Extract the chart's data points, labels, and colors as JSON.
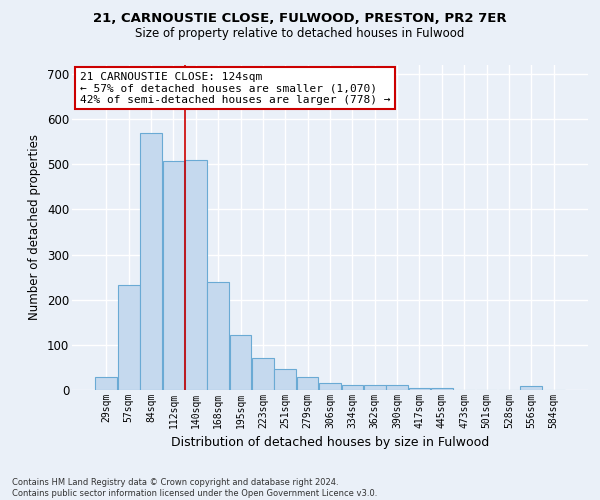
{
  "title_line1": "21, CARNOUSTIE CLOSE, FULWOOD, PRESTON, PR2 7ER",
  "title_line2": "Size of property relative to detached houses in Fulwood",
  "xlabel": "Distribution of detached houses by size in Fulwood",
  "ylabel": "Number of detached properties",
  "categories": [
    "29sqm",
    "57sqm",
    "84sqm",
    "112sqm",
    "140sqm",
    "168sqm",
    "195sqm",
    "223sqm",
    "251sqm",
    "279sqm",
    "306sqm",
    "334sqm",
    "362sqm",
    "390sqm",
    "417sqm",
    "445sqm",
    "473sqm",
    "501sqm",
    "528sqm",
    "556sqm",
    "584sqm"
  ],
  "values": [
    28,
    232,
    570,
    508,
    510,
    240,
    122,
    72,
    46,
    28,
    15,
    10,
    10,
    10,
    5,
    5,
    0,
    0,
    0,
    8,
    0
  ],
  "bar_color": "#c5d9ee",
  "bar_edge_color": "#6aaad4",
  "vline_x": 3.5,
  "vline_color": "#cc0000",
  "annotation_text": "21 CARNOUSTIE CLOSE: 124sqm\n← 57% of detached houses are smaller (1,070)\n42% of semi-detached houses are larger (778) →",
  "ylim": [
    0,
    720
  ],
  "yticks": [
    0,
    100,
    200,
    300,
    400,
    500,
    600,
    700
  ],
  "bg_color": "#eaf0f8",
  "grid_color": "#ffffff",
  "footnote": "Contains HM Land Registry data © Crown copyright and database right 2024.\nContains public sector information licensed under the Open Government Licence v3.0."
}
